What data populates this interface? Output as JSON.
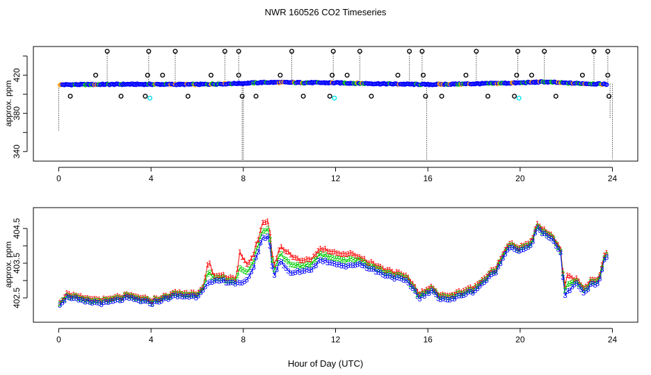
{
  "figure": {
    "title": "NWR  160526  CO2 Timeseries",
    "xlabel": "Hour of Day (UTC)"
  },
  "chart_data": [
    {
      "type": "scatter",
      "panel": "top",
      "ylabel": "approx. ppm",
      "xlim": [
        -1.1,
        25.1
      ],
      "ylim": [
        330,
        450
      ],
      "xticks": [
        0,
        4,
        8,
        12,
        16,
        20,
        24
      ],
      "yticks": [
        340,
        380,
        420
      ],
      "yticks_axis": [
        340,
        360,
        380,
        400,
        420,
        440
      ],
      "colors": {
        "baseline_blue": "#0000ff",
        "green": "#00cc00",
        "orange": "#ff9900",
        "circle": "#000000",
        "cyan": "#00e5ee",
        "red": "#ff0000"
      },
      "baseline": {
        "x_start": 0.05,
        "x_end": 23.75,
        "step": 0.05,
        "y_profile": [
          [
            0,
            410
          ],
          [
            3,
            410.5
          ],
          [
            6,
            410.3
          ],
          [
            8,
            411.5
          ],
          [
            9,
            412.5
          ],
          [
            12,
            412
          ],
          [
            14,
            411
          ],
          [
            16,
            410.2
          ],
          [
            18,
            411
          ],
          [
            20,
            412
          ],
          [
            21,
            413
          ],
          [
            22,
            411.8
          ],
          [
            23.75,
            410.5
          ]
        ]
      },
      "high_outliers": [
        [
          2.1,
          445
        ],
        [
          3.9,
          445
        ],
        [
          5.05,
          445
        ],
        [
          7.2,
          445
        ],
        [
          7.8,
          445
        ],
        [
          10.1,
          445
        ],
        [
          11.9,
          445
        ],
        [
          13.05,
          445
        ],
        [
          15.2,
          445
        ],
        [
          15.75,
          445
        ],
        [
          18.1,
          445
        ],
        [
          19.9,
          445
        ],
        [
          21.05,
          445
        ],
        [
          23.2,
          445
        ],
        [
          23.8,
          445
        ]
      ],
      "mid_outliers": [
        [
          1.6,
          420
        ],
        [
          3.85,
          420
        ],
        [
          4.5,
          420
        ],
        [
          6.6,
          420
        ],
        [
          7.8,
          420
        ],
        [
          9.6,
          420
        ],
        [
          11.85,
          420
        ],
        [
          12.5,
          420
        ],
        [
          14.7,
          420
        ],
        [
          15.8,
          420
        ],
        [
          17.65,
          420
        ],
        [
          19.85,
          420
        ],
        [
          20.5,
          420
        ],
        [
          22.7,
          420
        ],
        [
          23.8,
          420
        ]
      ],
      "low_outliers": [
        [
          0.5,
          398
        ],
        [
          2.7,
          398
        ],
        [
          3.75,
          398
        ],
        [
          5.6,
          398
        ],
        [
          7.95,
          398
        ],
        [
          8.55,
          398
        ],
        [
          10.6,
          398
        ],
        [
          11.75,
          398
        ],
        [
          13.55,
          398
        ],
        [
          15.9,
          398
        ],
        [
          16.6,
          398
        ],
        [
          18.6,
          398
        ],
        [
          19.75,
          398
        ],
        [
          21.55,
          398
        ],
        [
          23.85,
          398
        ]
      ],
      "cyan_points": [
        [
          3.95,
          396
        ],
        [
          11.95,
          396
        ],
        [
          19.95,
          396
        ]
      ],
      "dotted_lines": [
        [
          0.0,
          411,
          362
        ],
        [
          2.1,
          411,
          445
        ],
        [
          3.9,
          411,
          445
        ],
        [
          5.05,
          411,
          445
        ],
        [
          7.2,
          411,
          445
        ],
        [
          7.8,
          411,
          445
        ],
        [
          7.95,
          411,
          330
        ],
        [
          8.0,
          411,
          330
        ],
        [
          10.1,
          411,
          445
        ],
        [
          11.9,
          411,
          445
        ],
        [
          13.05,
          411,
          445
        ],
        [
          15.2,
          411,
          445
        ],
        [
          15.75,
          411,
          445
        ],
        [
          15.95,
          411,
          331
        ],
        [
          18.1,
          411,
          445
        ],
        [
          19.9,
          411,
          445
        ],
        [
          21.05,
          411,
          445
        ],
        [
          23.2,
          411,
          445
        ],
        [
          23.8,
          411,
          445
        ],
        [
          23.9,
          411,
          375
        ],
        [
          24.0,
          411,
          332
        ]
      ]
    },
    {
      "type": "line",
      "panel": "bottom",
      "ylabel": "approx. ppm",
      "xlim": [
        -1.1,
        25.1
      ],
      "ylim": [
        401.8,
        405.1
      ],
      "xticks": [
        0,
        4,
        8,
        12,
        16,
        20,
        24
      ],
      "yticks": [
        402.5,
        403.5,
        404.5
      ],
      "yticks_axis": [
        402.5,
        403.0,
        403.5,
        404.0,
        404.5
      ],
      "series": [
        {
          "name": "1",
          "color": "#ff0000",
          "offset_scale": 1.0
        },
        {
          "name": "2",
          "color": "#00cc00",
          "offset_scale": 0.5
        },
        {
          "name": "3",
          "color": "#0000ff",
          "offset_scale": 0.0
        }
      ],
      "series3_profile": [
        [
          0,
          402.3
        ],
        [
          0.4,
          402.55
        ],
        [
          1,
          402.4
        ],
        [
          2,
          402.35
        ],
        [
          3,
          402.5
        ],
        [
          4,
          402.35
        ],
        [
          5,
          402.55
        ],
        [
          6,
          402.55
        ],
        [
          6.4,
          402.9
        ],
        [
          7,
          403.0
        ],
        [
          7.5,
          402.95
        ],
        [
          8,
          402.9
        ],
        [
          8.4,
          403.3
        ],
        [
          8.8,
          404.2
        ],
        [
          9.1,
          404.3
        ],
        [
          9.3,
          403.1
        ],
        [
          9.6,
          403.6
        ],
        [
          10,
          403.2
        ],
        [
          11,
          403.35
        ],
        [
          11.3,
          403.6
        ],
        [
          12,
          403.5
        ],
        [
          12.5,
          403.4
        ],
        [
          13,
          403.5
        ],
        [
          14,
          403.2
        ],
        [
          15,
          403.0
        ],
        [
          15.4,
          402.75
        ],
        [
          15.6,
          402.5
        ],
        [
          16.2,
          402.7
        ],
        [
          16.5,
          402.5
        ],
        [
          17,
          402.45
        ],
        [
          17.5,
          402.6
        ],
        [
          18,
          402.7
        ],
        [
          18.5,
          403.0
        ],
        [
          19,
          403.3
        ],
        [
          19.5,
          404.0
        ],
        [
          20,
          403.85
        ],
        [
          20.5,
          404.0
        ],
        [
          20.7,
          404.55
        ],
        [
          21,
          404.35
        ],
        [
          21.5,
          404.1
        ],
        [
          21.8,
          403.7
        ],
        [
          21.9,
          402.55
        ],
        [
          22.1,
          402.7
        ],
        [
          22.4,
          402.95
        ],
        [
          22.8,
          402.65
        ],
        [
          23,
          402.85
        ],
        [
          23.4,
          402.95
        ],
        [
          23.7,
          403.7
        ]
      ],
      "offset_s1": [
        [
          0,
          0.1
        ],
        [
          6.3,
          0.1
        ],
        [
          6.5,
          0.7
        ],
        [
          6.7,
          0.15
        ],
        [
          7.7,
          0.15
        ],
        [
          7.85,
          0.9
        ],
        [
          8.2,
          0.4
        ],
        [
          8.6,
          0.35
        ],
        [
          9,
          0.45
        ],
        [
          9.3,
          0.3
        ],
        [
          10,
          0.55
        ],
        [
          10.5,
          0.3
        ],
        [
          12.7,
          0.35
        ],
        [
          13,
          0.2
        ],
        [
          16,
          0.12
        ],
        [
          21.8,
          0.12
        ],
        [
          22.1,
          0.5
        ],
        [
          22.3,
          0.15
        ],
        [
          24,
          0.12
        ]
      ]
    }
  ]
}
